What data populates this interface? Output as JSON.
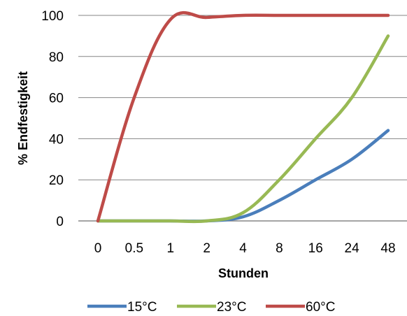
{
  "chart_data": {
    "type": "line",
    "title": "",
    "xlabel": "Stunden",
    "ylabel": "% Endfestigkeit",
    "categories": [
      "0",
      "0.5",
      "1",
      "2",
      "4",
      "8",
      "16",
      "24",
      "48"
    ],
    "ylim": [
      0,
      100
    ],
    "yticks": [
      "0",
      "20",
      "40",
      "60",
      "80",
      "100"
    ],
    "grid": "horizontal",
    "legend_position": "bottom",
    "series": [
      {
        "name": "15°C",
        "color": "#4a7ebb",
        "values": [
          0,
          0,
          0,
          0,
          2,
          10,
          20,
          30,
          44
        ]
      },
      {
        "name": "23°C",
        "color": "#98b954",
        "values": [
          0,
          0,
          0,
          0,
          4,
          20,
          40,
          60,
          90
        ]
      },
      {
        "name": "60°C",
        "color": "#be4b48",
        "values": [
          0,
          60,
          98,
          99,
          100,
          100,
          100,
          100,
          100
        ]
      }
    ]
  }
}
